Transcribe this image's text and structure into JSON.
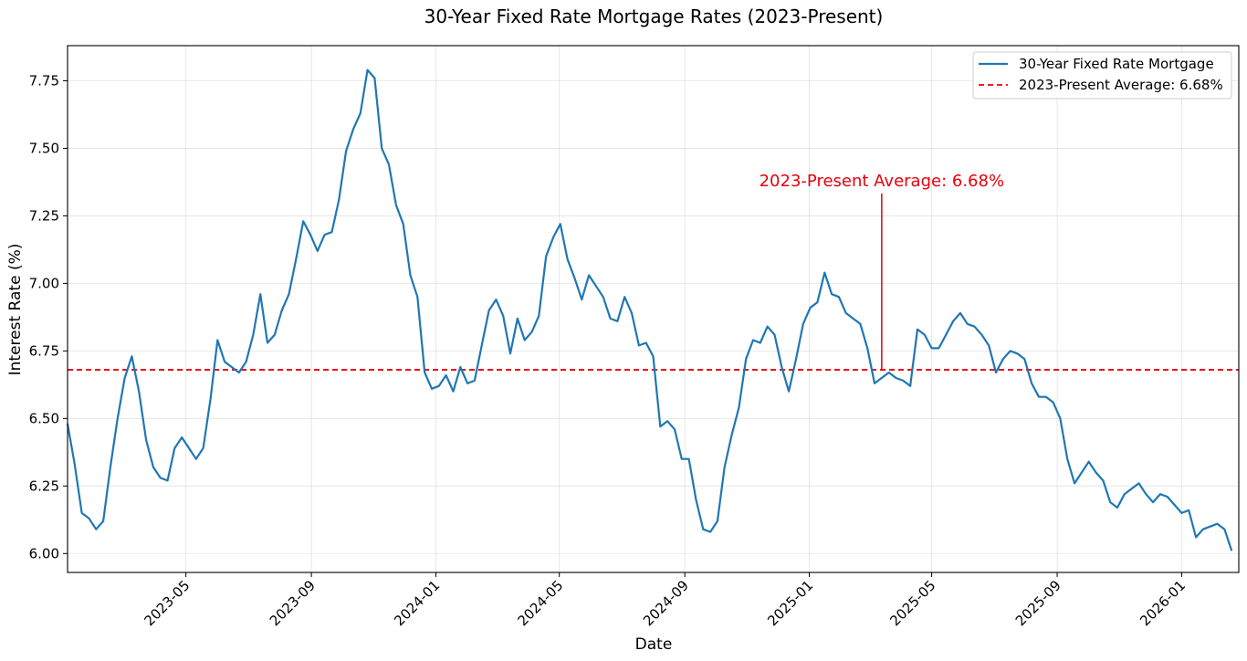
{
  "chart_data": {
    "type": "line",
    "title": "30-Year Fixed Rate Mortgage Rates (2023-Present)",
    "xlabel": "Date",
    "ylabel": "Interest Rate (%)",
    "xlim": [
      "2023-01-05",
      "2026-02-26"
    ],
    "ylim": [
      5.93,
      7.88
    ],
    "grid": true,
    "legend_position": "top-right",
    "x_ticks": [
      "2023-05",
      "2023-09",
      "2024-01",
      "2024-05",
      "2024-09",
      "2025-01",
      "2025-05",
      "2025-09",
      "2026-01"
    ],
    "y_ticks": [
      "6.00",
      "6.25",
      "6.50",
      "6.75",
      "7.00",
      "7.25",
      "7.50",
      "7.75"
    ],
    "series": [
      {
        "name": "30-Year Fixed Rate Mortgage",
        "color": "#1f77b4",
        "style": "solid",
        "start_date": "2023-01-05",
        "interval_days": 7,
        "values": [
          6.48,
          6.33,
          6.15,
          6.13,
          6.09,
          6.12,
          6.32,
          6.5,
          6.65,
          6.73,
          6.6,
          6.42,
          6.32,
          6.28,
          6.27,
          6.39,
          6.43,
          6.39,
          6.35,
          6.39,
          6.57,
          6.79,
          6.71,
          6.69,
          6.67,
          6.71,
          6.81,
          6.96,
          6.78,
          6.81,
          6.9,
          6.96,
          7.09,
          7.23,
          7.18,
          7.12,
          7.18,
          7.19,
          7.31,
          7.49,
          7.57,
          7.63,
          7.79,
          7.76,
          7.5,
          7.44,
          7.29,
          7.22,
          7.03,
          6.95,
          6.67,
          6.61,
          6.62,
          6.66,
          6.6,
          6.69,
          6.63,
          6.64,
          6.77,
          6.9,
          6.94,
          6.88,
          6.74,
          6.87,
          6.79,
          6.82,
          6.88,
          7.1,
          7.17,
          7.22,
          7.09,
          7.02,
          6.94,
          7.03,
          6.99,
          6.95,
          6.87,
          6.86,
          6.95,
          6.89,
          6.77,
          6.78,
          6.73,
          6.47,
          6.49,
          6.46,
          6.35,
          6.35,
          6.2,
          6.09,
          6.08,
          6.12,
          6.32,
          6.44,
          6.54,
          6.72,
          6.79,
          6.78,
          6.84,
          6.81,
          6.69,
          6.6,
          6.72,
          6.85,
          6.91,
          6.93,
          7.04,
          6.96,
          6.95,
          6.89,
          6.87,
          6.85,
          6.76,
          6.63,
          6.65,
          6.67,
          6.65,
          6.64,
          6.62,
          6.83,
          6.81,
          6.76,
          6.76,
          6.81,
          6.86,
          6.89,
          6.85,
          6.84,
          6.81,
          6.77,
          6.67,
          6.72,
          6.75,
          6.74,
          6.72,
          6.63,
          6.58,
          6.58,
          6.56,
          6.5,
          6.35,
          6.26,
          6.3,
          6.34,
          6.3,
          6.27,
          6.19,
          6.17,
          6.22,
          6.24,
          6.26,
          6.22,
          6.19,
          6.22,
          6.21,
          6.18,
          6.15,
          6.16,
          6.06,
          6.09,
          6.1,
          6.11,
          6.09,
          6.01
        ]
      },
      {
        "name": "2023-Present Average: 6.68%",
        "color": "#e8000b",
        "style": "dashed",
        "constant": 6.68
      }
    ],
    "annotations": [
      {
        "text": "2023-Present Average: 6.68%",
        "point_date": "2025-03-13",
        "point_value": 6.68,
        "text_value": 7.38
      }
    ]
  }
}
